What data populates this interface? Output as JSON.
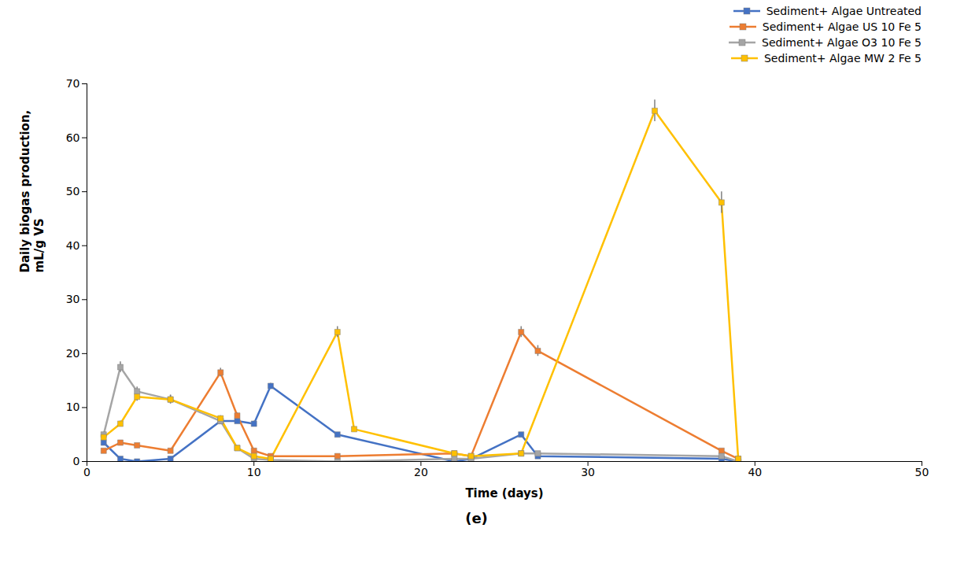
{
  "chart_data": {
    "type": "line",
    "xlabel": "Time (days)",
    "ylabel": "Daily biogas production,\nmL/g VS",
    "caption": "(e)",
    "marker": "square",
    "legend": "upper right",
    "grid": false,
    "xlim": [
      0,
      50
    ],
    "ylim": [
      0,
      70
    ],
    "xticks": [
      0,
      10,
      20,
      30,
      40,
      50
    ],
    "yticks": [
      0,
      10,
      20,
      30,
      40,
      50,
      60,
      70
    ],
    "series": [
      {
        "name": "Sediment+ Algae Untreated",
        "color": "#4472C4",
        "x": [
          1,
          2,
          3,
          5,
          8,
          9,
          10,
          11,
          15,
          22,
          23,
          26,
          27,
          38,
          39
        ],
        "values": [
          3.5,
          0.5,
          0.0,
          0.5,
          7.5,
          7.5,
          7.0,
          14.0,
          5.0,
          0.0,
          0.5,
          5.0,
          1.0,
          0.5,
          0.0
        ],
        "yerr": [
          0.3,
          0.2,
          0.1,
          0.2,
          0.5,
          0.5,
          0.5,
          0.5,
          0.4,
          0.1,
          0.1,
          0.4,
          0.2,
          0.1,
          0.1
        ]
      },
      {
        "name": "Sediment+ Algae US 10 Fe 5",
        "color": "#ED7D31",
        "x": [
          1,
          2,
          3,
          5,
          8,
          9,
          10,
          11,
          15,
          22,
          23,
          26,
          27,
          38,
          39
        ],
        "values": [
          2.0,
          3.5,
          3.0,
          2.0,
          16.5,
          8.5,
          2.0,
          1.0,
          1.0,
          1.5,
          1.0,
          24.0,
          20.5,
          2.0,
          0.5
        ],
        "yerr": [
          0.3,
          0.3,
          0.3,
          0.2,
          0.8,
          0.5,
          0.2,
          0.1,
          0.1,
          0.2,
          0.1,
          1.0,
          1.0,
          0.2,
          0.1
        ]
      },
      {
        "name": "Sediment+ Algae O3 10 Fe 5",
        "color": "#A5A5A5",
        "x": [
          1,
          2,
          3,
          5,
          8,
          9,
          10,
          11,
          15,
          22,
          23,
          26,
          27,
          38,
          39
        ],
        "values": [
          5.0,
          17.5,
          13.0,
          11.5,
          7.5,
          2.5,
          0.5,
          0.3,
          0.0,
          0.5,
          0.5,
          1.5,
          1.5,
          1.0,
          0.0
        ],
        "yerr": [
          0.4,
          1.0,
          0.8,
          0.8,
          0.5,
          0.3,
          0.1,
          0.1,
          0.1,
          0.1,
          0.1,
          0.2,
          0.2,
          0.1,
          0.1
        ]
      },
      {
        "name": "Sediment+ Algae MW 2 Fe 5",
        "color": "#FFC000",
        "x": [
          1,
          2,
          3,
          5,
          8,
          9,
          10,
          11,
          15,
          16,
          22,
          23,
          26,
          34,
          38,
          39
        ],
        "values": [
          4.5,
          7.0,
          12.0,
          11.5,
          8.0,
          2.5,
          1.0,
          0.5,
          24.0,
          6.0,
          1.5,
          1.0,
          1.5,
          65.0,
          48.0,
          0.5
        ],
        "yerr": [
          0.4,
          0.5,
          0.8,
          0.8,
          0.5,
          0.3,
          0.1,
          0.1,
          1.0,
          0.4,
          0.2,
          0.1,
          0.2,
          2.0,
          2.0,
          0.1
        ]
      }
    ]
  }
}
